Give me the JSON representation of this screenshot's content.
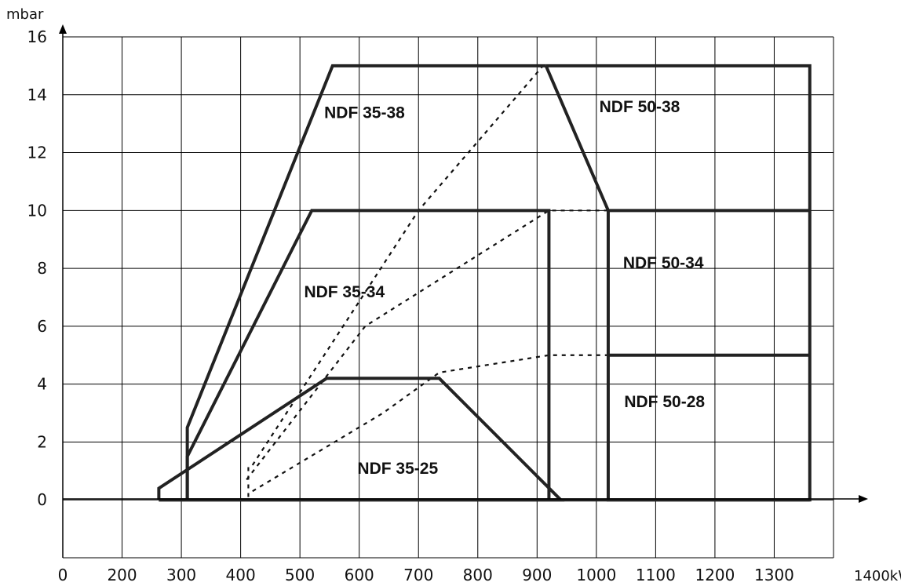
{
  "chart_data": {
    "type": "line",
    "y_unit": "mbar",
    "x_unit": "1400kW",
    "x_ticks": [
      "0",
      "200",
      "300",
      "400",
      "500",
      "600",
      "700",
      "800",
      "900",
      "1000",
      "1100",
      "1200",
      "1300"
    ],
    "y_ticks": [
      "0",
      "2",
      "4",
      "6",
      "8",
      "10",
      "12",
      "14",
      "16"
    ],
    "x_gridlines": [
      0,
      200,
      300,
      400,
      500,
      600,
      700,
      800,
      900,
      1000,
      1100,
      1200,
      1300,
      1400
    ],
    "y_gridlines": [
      -2,
      0,
      2,
      4,
      6,
      8,
      10,
      12,
      14,
      16
    ],
    "xlim": [
      0,
      1400
    ],
    "ylim": [
      -2.0,
      16.0
    ],
    "grid": true,
    "regions": [
      {
        "name": "NDF 35-38",
        "label_at": [
          541,
          13.2
        ],
        "points": [
          [
            310,
            0
          ],
          [
            310,
            2.5
          ],
          [
            555,
            15
          ],
          [
            915,
            15
          ]
        ]
      },
      {
        "name": "NDF 35-34",
        "label_at": [
          507,
          7.0
        ],
        "points": [
          [
            310,
            0
          ],
          [
            310,
            1.5
          ],
          [
            520,
            10
          ],
          [
            910,
            10
          ],
          [
            920,
            10
          ],
          [
            920,
            0
          ]
        ]
      },
      {
        "name": "NDF 35-25",
        "label_at": [
          597,
          0.9
        ],
        "points": [
          [
            262,
            0
          ],
          [
            262,
            0.4
          ],
          [
            545,
            4.2
          ],
          [
            735,
            4.2
          ],
          [
            940,
            0
          ],
          [
            262,
            0
          ]
        ]
      },
      {
        "name": "NDF 50-38",
        "label_at": [
          1005,
          13.4
        ],
        "points": [
          [
            915,
            15
          ],
          [
            1360,
            15
          ],
          [
            1360,
            0
          ],
          [
            1020,
            0
          ],
          [
            1020,
            10
          ],
          [
            915,
            15
          ]
        ]
      },
      {
        "name": "NDF 50-34",
        "label_at": [
          1045,
          8.0
        ],
        "points": [
          [
            1020,
            10
          ],
          [
            1360,
            10
          ]
        ]
      },
      {
        "name": "NDF 50-28",
        "label_at": [
          1047,
          3.2
        ],
        "points": [
          [
            1020,
            5
          ],
          [
            1360,
            5
          ]
        ]
      }
    ],
    "dotted_curves": [
      {
        "points": [
          [
            420,
            1.2
          ],
          [
            700,
            10
          ],
          [
            910,
            15
          ]
        ]
      },
      {
        "points": [
          [
            410,
            0.7
          ],
          [
            610,
            6
          ],
          [
            920,
            10
          ],
          [
            1020,
            10
          ]
        ]
      },
      {
        "points": [
          [
            420,
            0.3
          ],
          [
            640,
            3
          ],
          [
            735,
            4.4
          ],
          [
            920,
            5
          ],
          [
            1020,
            5
          ]
        ]
      },
      {
        "points": [
          [
            413,
            0.1
          ],
          [
            413,
            1.2
          ]
        ]
      }
    ]
  }
}
